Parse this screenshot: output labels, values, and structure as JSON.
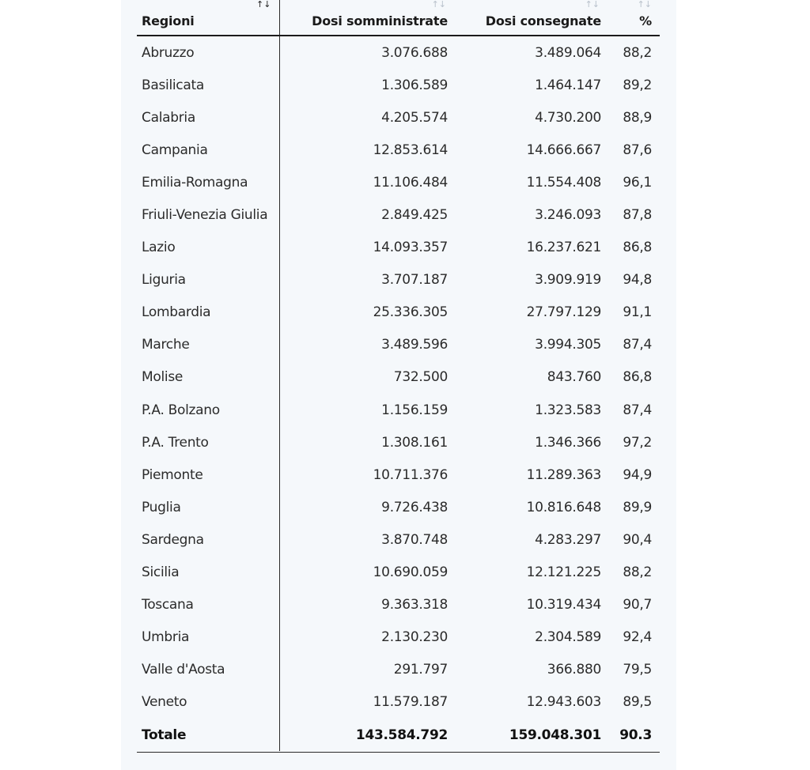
{
  "table": {
    "headers": {
      "region": "Regioni",
      "administered": "Dosi somministrate",
      "delivered": "Dosi consegnate",
      "percent": "%"
    },
    "sort_icon": "↑↓",
    "rows": [
      {
        "region": "Abruzzo",
        "administered": "3.076.688",
        "delivered": "3.489.064",
        "percent": "88,2"
      },
      {
        "region": "Basilicata",
        "administered": "1.306.589",
        "delivered": "1.464.147",
        "percent": "89,2"
      },
      {
        "region": "Calabria",
        "administered": "4.205.574",
        "delivered": "4.730.200",
        "percent": "88,9"
      },
      {
        "region": "Campania",
        "administered": "12.853.614",
        "delivered": "14.666.667",
        "percent": "87,6"
      },
      {
        "region": "Emilia-Romagna",
        "administered": "11.106.484",
        "delivered": "11.554.408",
        "percent": "96,1"
      },
      {
        "region": "Friuli-Venezia Giulia",
        "administered": "2.849.425",
        "delivered": "3.246.093",
        "percent": "87,8"
      },
      {
        "region": "Lazio",
        "administered": "14.093.357",
        "delivered": "16.237.621",
        "percent": "86,8"
      },
      {
        "region": "Liguria",
        "administered": "3.707.187",
        "delivered": "3.909.919",
        "percent": "94,8"
      },
      {
        "region": "Lombardia",
        "administered": "25.336.305",
        "delivered": "27.797.129",
        "percent": "91,1"
      },
      {
        "region": "Marche",
        "administered": "3.489.596",
        "delivered": "3.994.305",
        "percent": "87,4"
      },
      {
        "region": "Molise",
        "administered": "732.500",
        "delivered": "843.760",
        "percent": "86,8"
      },
      {
        "region": "P.A. Bolzano",
        "administered": "1.156.159",
        "delivered": "1.323.583",
        "percent": "87,4"
      },
      {
        "region": "P.A. Trento",
        "administered": "1.308.161",
        "delivered": "1.346.366",
        "percent": "97,2"
      },
      {
        "region": "Piemonte",
        "administered": "10.711.376",
        "delivered": "11.289.363",
        "percent": "94,9"
      },
      {
        "region": "Puglia",
        "administered": "9.726.438",
        "delivered": "10.816.648",
        "percent": "89,9"
      },
      {
        "region": "Sardegna",
        "administered": "3.870.748",
        "delivered": "4.283.297",
        "percent": "90,4"
      },
      {
        "region": "Sicilia",
        "administered": "10.690.059",
        "delivered": "12.121.225",
        "percent": "88,2"
      },
      {
        "region": "Toscana",
        "administered": "9.363.318",
        "delivered": "10.319.434",
        "percent": "90,7"
      },
      {
        "region": "Umbria",
        "administered": "2.130.230",
        "delivered": "2.304.589",
        "percent": "92,4"
      },
      {
        "region": "Valle d'Aosta",
        "administered": "291.797",
        "delivered": "366.880",
        "percent": "79,5"
      },
      {
        "region": "Veneto",
        "administered": "11.579.187",
        "delivered": "12.943.603",
        "percent": "89,5"
      }
    ],
    "total": {
      "label": "Totale",
      "administered": "143.584.792",
      "delivered": "159.048.301",
      "percent": "90.3"
    }
  }
}
